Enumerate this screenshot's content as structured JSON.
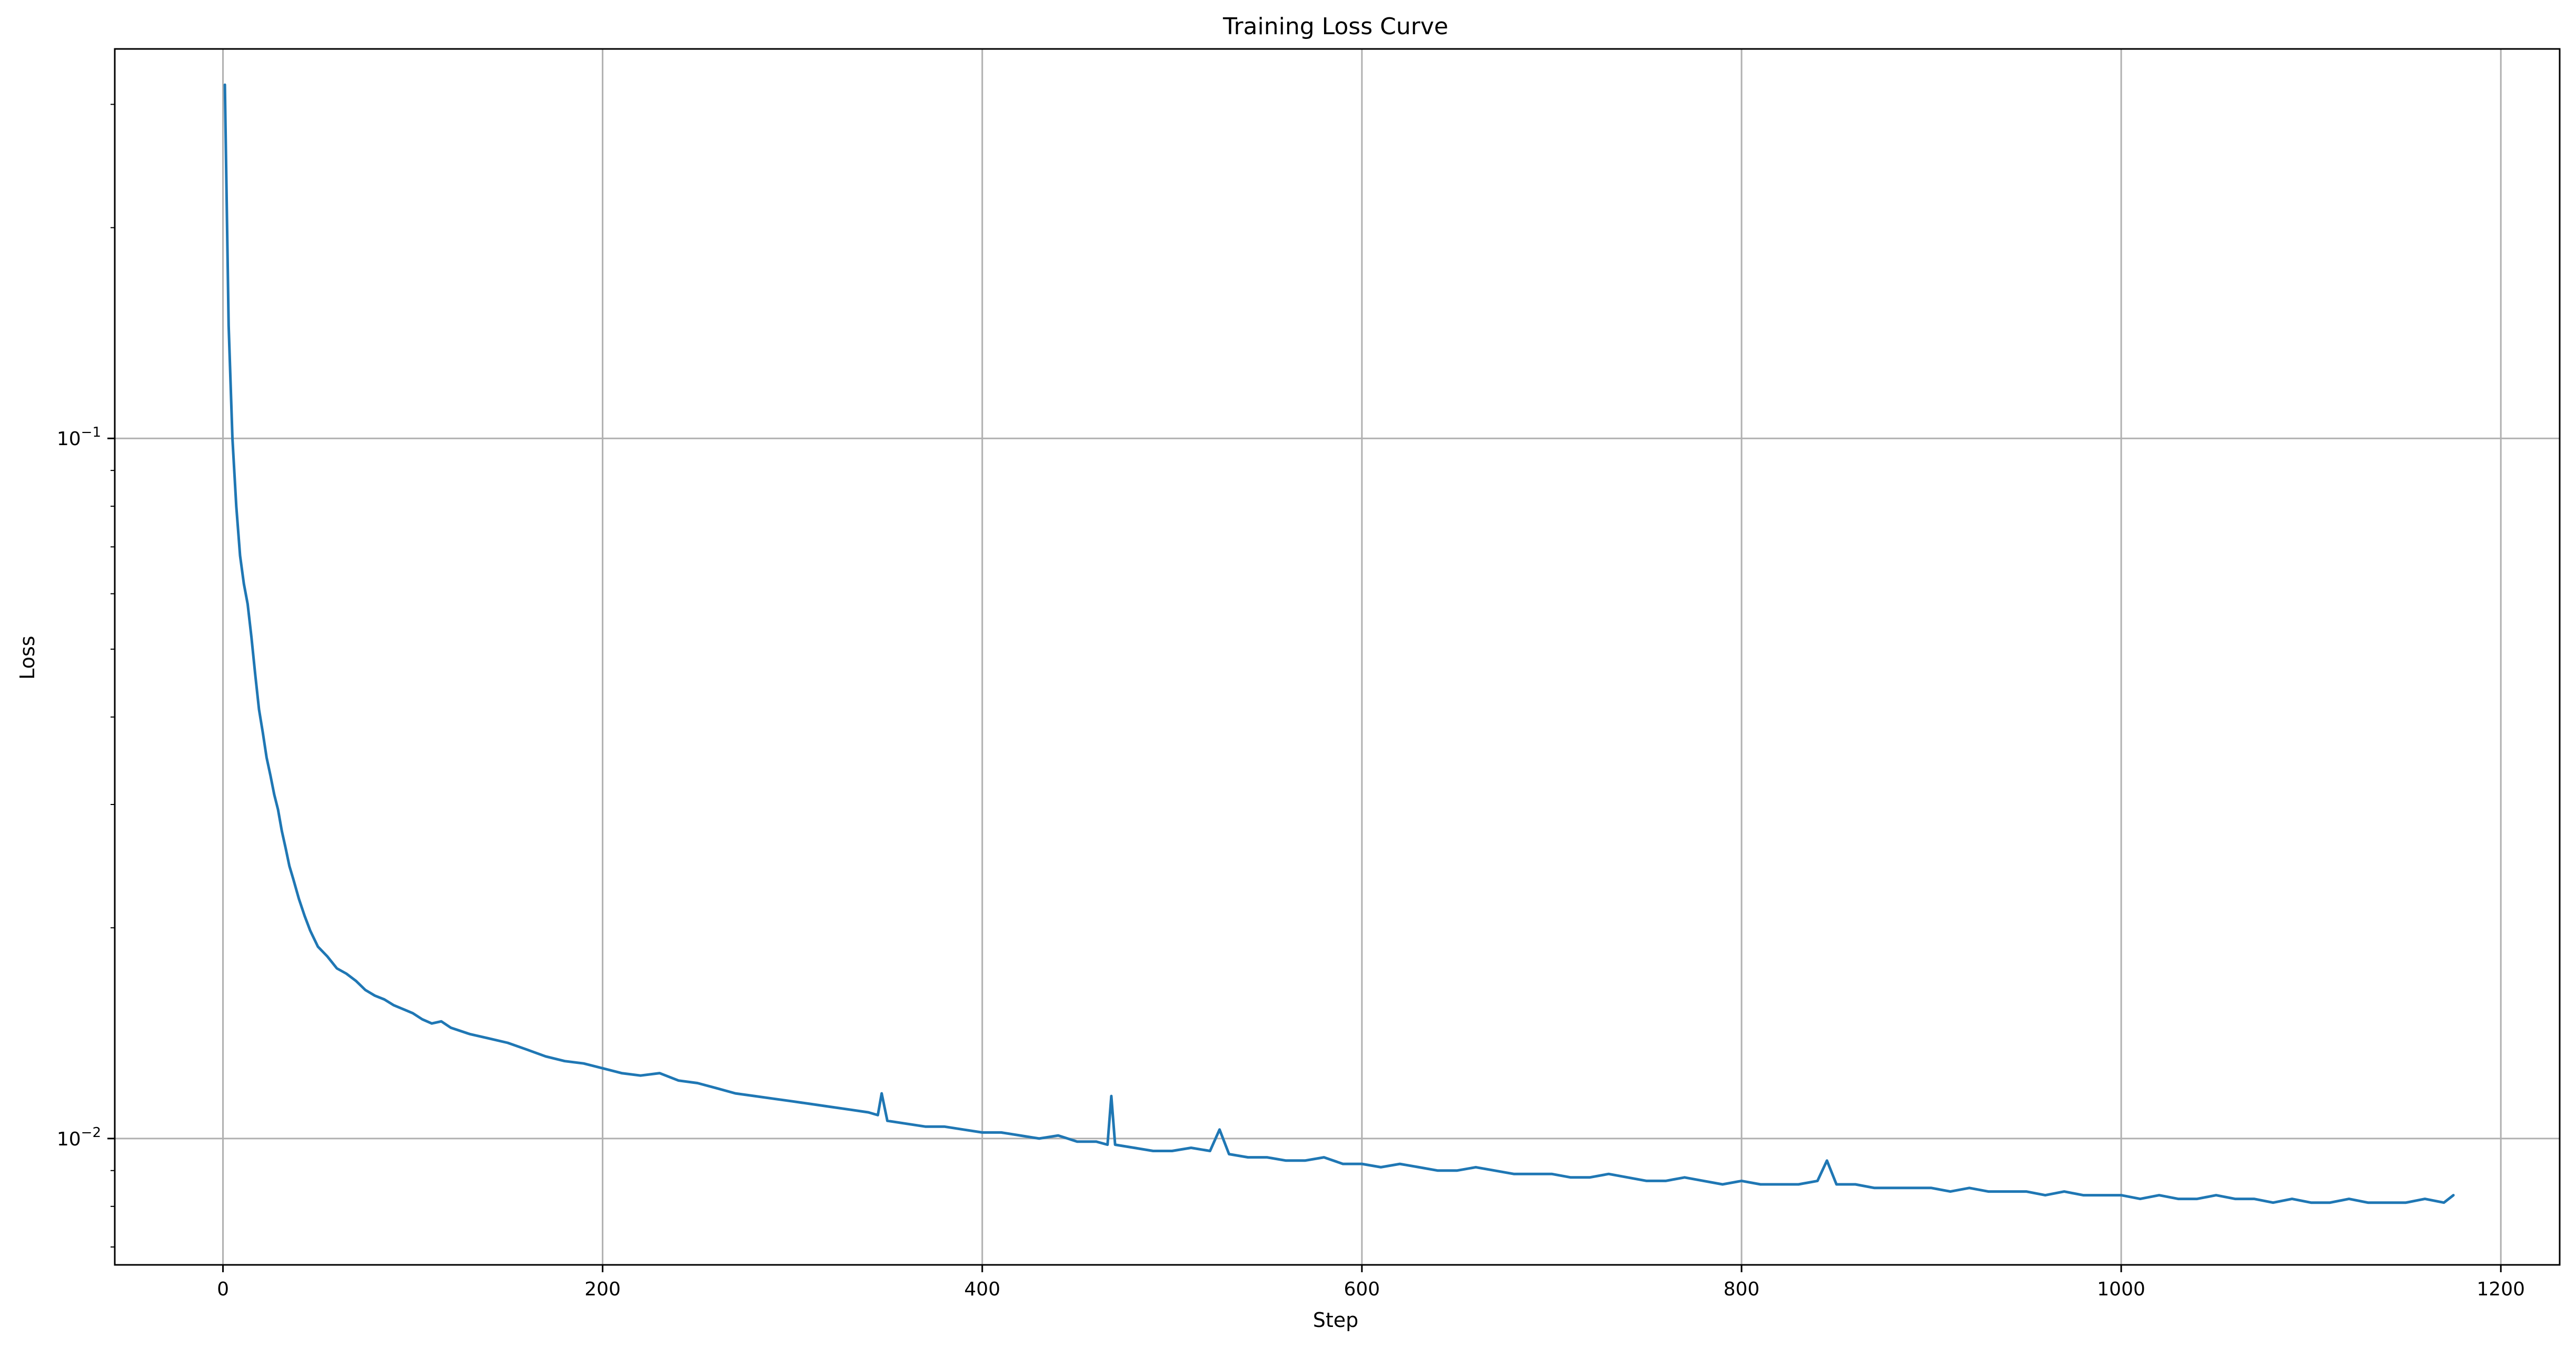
{
  "chart_data": {
    "type": "line",
    "title": "Training Loss Curve",
    "xlabel": "Step",
    "ylabel": "Loss",
    "xlim": [
      -57,
      1231
    ],
    "ylim": [
      0.0066,
      0.36
    ],
    "yscale": "log",
    "grid": true,
    "legend": null,
    "x_ticks": [
      {
        "value": 0,
        "label": "0"
      },
      {
        "value": 200,
        "label": "200"
      },
      {
        "value": 400,
        "label": "400"
      },
      {
        "value": 600,
        "label": "600"
      },
      {
        "value": 800,
        "label": "800"
      },
      {
        "value": 1000,
        "label": "1000"
      },
      {
        "value": 1200,
        "label": "1200"
      }
    ],
    "y_ticks": [
      {
        "value": 0.1,
        "mantissa": "10",
        "exponent": "−1"
      },
      {
        "value": 0.01,
        "mantissa": "10",
        "exponent": "−2"
      }
    ],
    "y_minor_ticks": [
      0.007,
      0.008,
      0.009,
      0.02,
      0.03,
      0.04,
      0.05,
      0.06,
      0.07,
      0.08,
      0.09,
      0.2,
      0.3
    ],
    "series": [
      {
        "color": "#1f77b4",
        "x": [
          1,
          3,
          5,
          7,
          9,
          11,
          13,
          15,
          17,
          19,
          21,
          23,
          25,
          27,
          29,
          31,
          33,
          35,
          37,
          40,
          43,
          46,
          50,
          55,
          60,
          65,
          70,
          75,
          80,
          85,
          90,
          95,
          100,
          105,
          110,
          115,
          120,
          130,
          140,
          150,
          160,
          170,
          180,
          190,
          200,
          210,
          220,
          230,
          240,
          250,
          260,
          270,
          280,
          290,
          300,
          310,
          320,
          330,
          340,
          345,
          347,
          350,
          360,
          370,
          380,
          390,
          400,
          410,
          420,
          430,
          440,
          450,
          460,
          466,
          468,
          470,
          480,
          490,
          500,
          510,
          520,
          525,
          530,
          540,
          550,
          560,
          570,
          580,
          590,
          600,
          610,
          620,
          630,
          640,
          650,
          660,
          670,
          680,
          690,
          700,
          710,
          720,
          730,
          740,
          750,
          760,
          770,
          780,
          790,
          800,
          810,
          820,
          830,
          840,
          845,
          850,
          860,
          870,
          880,
          890,
          900,
          910,
          920,
          930,
          940,
          950,
          960,
          970,
          980,
          990,
          1000,
          1010,
          1020,
          1030,
          1040,
          1050,
          1060,
          1070,
          1080,
          1090,
          1100,
          1110,
          1120,
          1130,
          1140,
          1150,
          1160,
          1170,
          1175
        ],
        "y": [
          0.32,
          0.145,
          0.1,
          0.08,
          0.068,
          0.062,
          0.058,
          0.052,
          0.046,
          0.041,
          0.038,
          0.035,
          0.033,
          0.031,
          0.0295,
          0.0275,
          0.026,
          0.0245,
          0.0235,
          0.022,
          0.0208,
          0.0198,
          0.0188,
          0.0182,
          0.0175,
          0.0172,
          0.0168,
          0.0163,
          0.016,
          0.0158,
          0.0155,
          0.0153,
          0.0151,
          0.0148,
          0.0146,
          0.0147,
          0.0144,
          0.0141,
          0.0139,
          0.0137,
          0.0134,
          0.0131,
          0.0129,
          0.0128,
          0.0126,
          0.0124,
          0.0123,
          0.0124,
          0.0121,
          0.012,
          0.0118,
          0.0116,
          0.0115,
          0.0114,
          0.0113,
          0.0112,
          0.0111,
          0.011,
          0.0109,
          0.0108,
          0.0116,
          0.0106,
          0.0105,
          0.0104,
          0.0104,
          0.0103,
          0.0102,
          0.0102,
          0.0101,
          0.01,
          0.0101,
          0.0099,
          0.0099,
          0.0098,
          0.0115,
          0.0098,
          0.0097,
          0.0096,
          0.0096,
          0.0097,
          0.0096,
          0.0103,
          0.0095,
          0.0094,
          0.0094,
          0.0093,
          0.0093,
          0.0094,
          0.0092,
          0.0092,
          0.0091,
          0.0092,
          0.0091,
          0.009,
          0.009,
          0.0091,
          0.009,
          0.0089,
          0.0089,
          0.0089,
          0.0088,
          0.0088,
          0.0089,
          0.0088,
          0.0087,
          0.0087,
          0.0088,
          0.0087,
          0.0086,
          0.0087,
          0.0086,
          0.0086,
          0.0086,
          0.0087,
          0.0093,
          0.0086,
          0.0086,
          0.0085,
          0.0085,
          0.0085,
          0.0085,
          0.0084,
          0.0085,
          0.0084,
          0.0084,
          0.0084,
          0.0083,
          0.0084,
          0.0083,
          0.0083,
          0.0083,
          0.0082,
          0.0083,
          0.0082,
          0.0082,
          0.0083,
          0.0082,
          0.0082,
          0.0081,
          0.0082,
          0.0081,
          0.0081,
          0.0082,
          0.0081,
          0.0081,
          0.0081,
          0.0082,
          0.0081,
          0.0083
        ]
      }
    ]
  }
}
